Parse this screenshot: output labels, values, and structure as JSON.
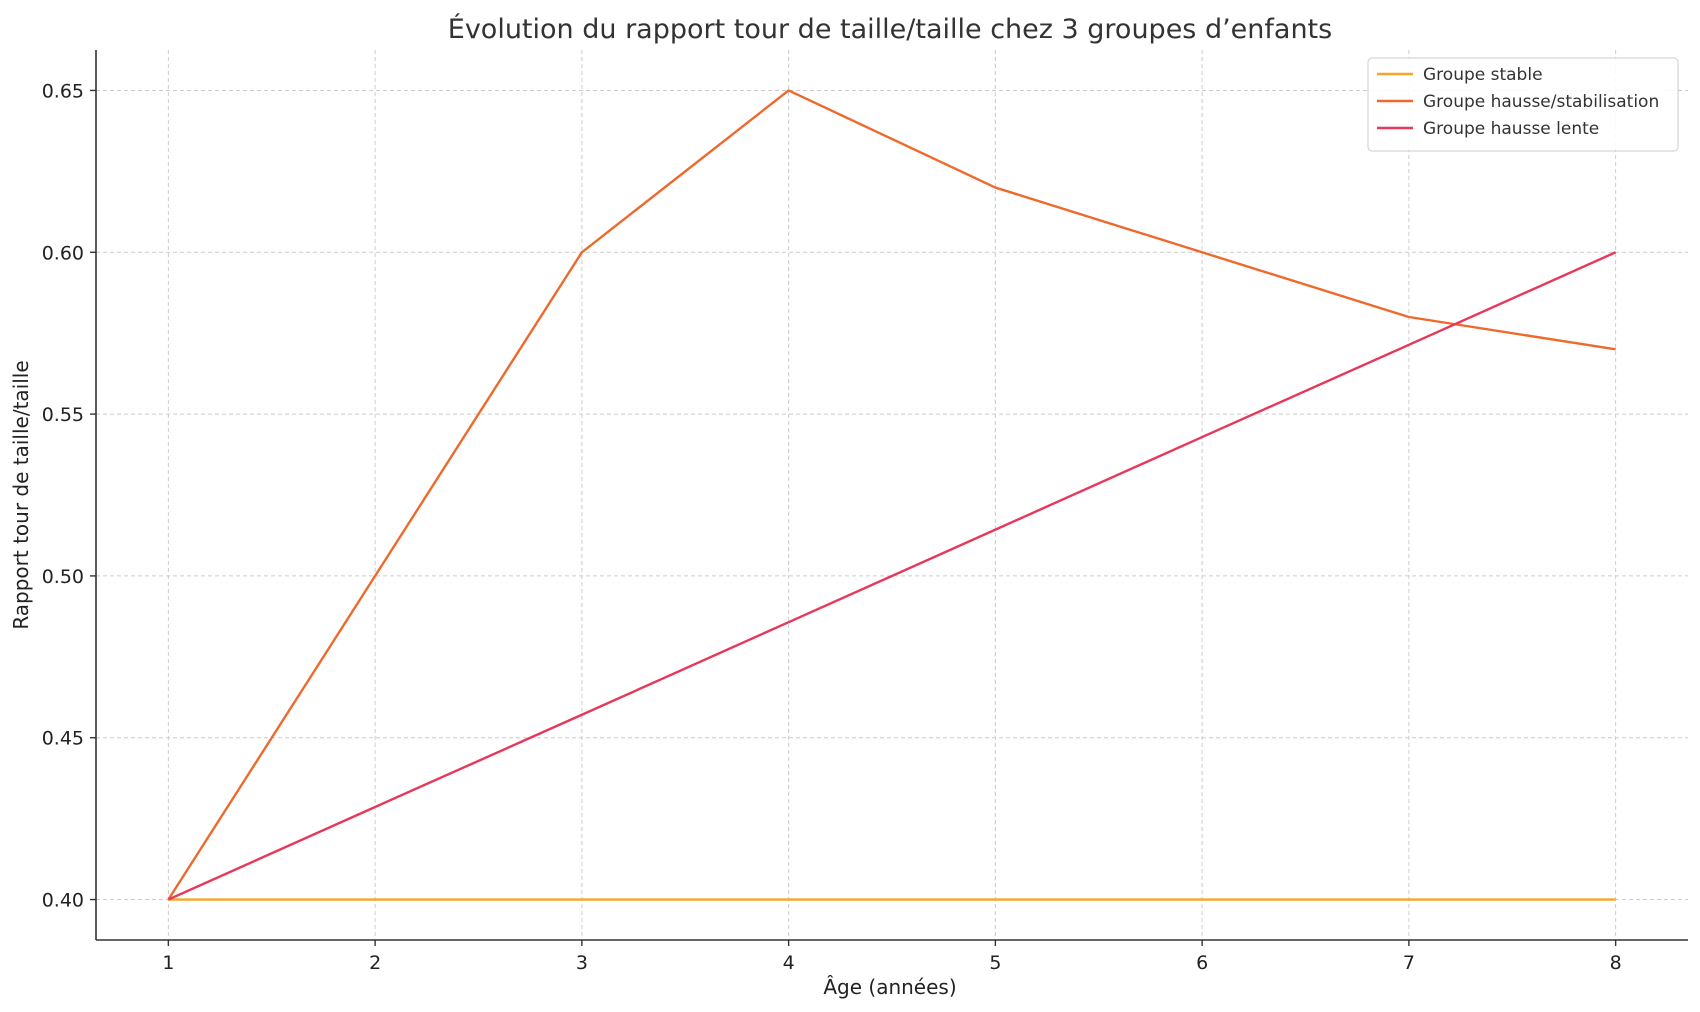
{
  "chart_data": {
    "type": "line",
    "title": "Évolution du rapport tour de taille/taille chez 3 groupes d’enfants",
    "xlabel": "Âge (années)",
    "ylabel": "Rapport tour de taille/taille",
    "x": [
      1,
      2,
      3,
      4,
      5,
      6,
      7,
      8
    ],
    "x_tick_labels": [
      "1",
      "2",
      "3",
      "4",
      "5",
      "6",
      "7",
      "8"
    ],
    "y_tick_values": [
      0.4,
      0.45,
      0.5,
      0.55,
      0.6,
      0.65
    ],
    "y_tick_labels": [
      "0.40",
      "0.45",
      "0.50",
      "0.55",
      "0.60",
      "0.65"
    ],
    "xlim": [
      0.65,
      8.35
    ],
    "ylim": [
      0.3875,
      0.6625
    ],
    "grid": true,
    "legend_position": "top-right",
    "series": [
      {
        "name": "Groupe stable",
        "color": "#f5a623",
        "values": [
          0.4,
          0.4,
          0.4,
          0.4,
          0.4,
          0.4,
          0.4,
          0.4
        ]
      },
      {
        "name": "Groupe hausse/stabilisation",
        "color": "#ee6a2c",
        "values": [
          0.4,
          0.5,
          0.6,
          0.65,
          0.62,
          0.6,
          0.58,
          0.57
        ]
      },
      {
        "name": "Groupe hausse lente",
        "color": "#e8385a",
        "values": [
          0.4,
          0.4286,
          0.4571,
          0.4857,
          0.5143,
          0.5429,
          0.5714,
          0.6
        ]
      }
    ]
  }
}
